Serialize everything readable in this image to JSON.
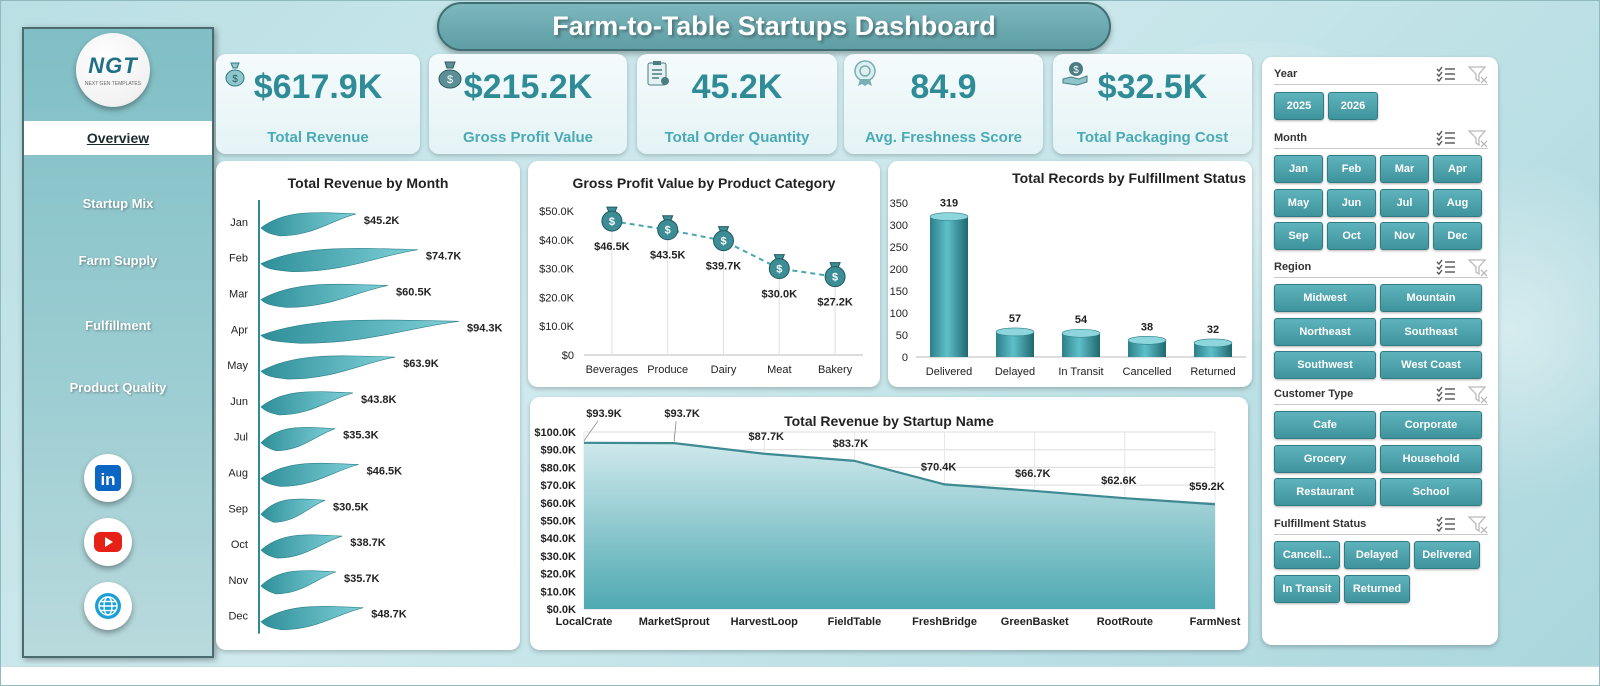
{
  "header": {
    "title": "Farm-to-Table Startups Dashboard"
  },
  "logo": {
    "text": "NGT",
    "subtext": "NEXT GEN TEMPLATES"
  },
  "nav": {
    "items": [
      {
        "label": "Overview",
        "active": true
      },
      {
        "label": "Startup Mix",
        "active": false
      },
      {
        "label": "Farm Supply",
        "active": false
      },
      {
        "label": "Fulfillment",
        "active": false
      },
      {
        "label": "Product Quality",
        "active": false
      }
    ]
  },
  "social": [
    "linkedin-icon",
    "youtube-icon",
    "globe-icon"
  ],
  "kpis": [
    {
      "value": "$617.9K",
      "label": "Total Revenue",
      "icon": "money-bag-icon"
    },
    {
      "value": "$215.2K",
      "label": "Gross Profit Value",
      "icon": "money-bag-icon"
    },
    {
      "value": "45.2K",
      "label": "Total Order Quantity",
      "icon": "clipboard-icon"
    },
    {
      "value": "84.9",
      "label": "Avg. Freshness Score",
      "icon": "badge-icon"
    },
    {
      "value": "$32.5K",
      "label": "Total Packaging Cost",
      "icon": "hand-money-icon"
    }
  ],
  "colors": {
    "accent": "#3f939c",
    "kpi_value": "#2f8c97",
    "kpi_label": "#4aaab4",
    "line": "#3d8a93"
  },
  "chart_data": [
    {
      "type": "bar",
      "title": "Total Revenue  by Month",
      "orientation": "horizontal",
      "categories": [
        "Jan",
        "Feb",
        "Mar",
        "Apr",
        "May",
        "Jun",
        "Jul",
        "Aug",
        "Sep",
        "Oct",
        "Nov",
        "Dec"
      ],
      "values": [
        45.2,
        74.7,
        60.5,
        94.3,
        63.9,
        43.8,
        35.3,
        46.5,
        30.5,
        38.7,
        35.7,
        48.7
      ],
      "data_labels": [
        "$45.2K",
        "$74.7K",
        "$60.5K",
        "$94.3K",
        "$63.9K",
        "$43.8K",
        "$35.3K",
        "$46.5K",
        "$30.5K",
        "$38.7K",
        "$35.7K",
        "$48.7K"
      ],
      "xlim": [
        0,
        100
      ]
    },
    {
      "type": "line",
      "title": "Gross Profit Value by Product Category",
      "categories": [
        "Beverages",
        "Produce",
        "Dairy",
        "Meat",
        "Bakery"
      ],
      "values": [
        46.5,
        43.5,
        39.7,
        30.0,
        27.2
      ],
      "data_labels": [
        "$46.5K",
        "$43.5K",
        "$39.7K",
        "$30.0K",
        "$27.2K"
      ],
      "yticks": [
        "$0",
        "$10.0K",
        "$20.0K",
        "$30.0K",
        "$40.0K",
        "$50.0K"
      ],
      "ylim": [
        0,
        50
      ],
      "line_style": "dashed",
      "marker": "money-bag"
    },
    {
      "type": "bar",
      "title": "Total Records by Fulfillment Status",
      "categories": [
        "Delivered",
        "Delayed",
        "In Transit",
        "Cancelled",
        "Returned"
      ],
      "values": [
        319,
        57,
        54,
        38,
        32
      ],
      "data_labels": [
        "319",
        "57",
        "54",
        "38",
        "32"
      ],
      "yticks": [
        "0",
        "50",
        "100",
        "150",
        "200",
        "250",
        "300",
        "350"
      ],
      "ylim": [
        0,
        350
      ]
    },
    {
      "type": "area",
      "title": "Total Revenue  by Startup Name",
      "categories": [
        "LocalCrate",
        "MarketSprout",
        "HarvestLoop",
        "FieldTable",
        "FreshBridge",
        "GreenBasket",
        "RootRoute",
        "FarmNest"
      ],
      "values": [
        93.9,
        93.7,
        87.7,
        83.7,
        70.4,
        66.7,
        62.6,
        59.2
      ],
      "data_labels": [
        "$93.9K",
        "$93.7K",
        "$87.7K",
        "$83.7K",
        "$70.4K",
        "$66.7K",
        "$62.6K",
        "$59.2K"
      ],
      "yticks": [
        "$0.0K",
        "$10.0K",
        "$20.0K",
        "$30.0K",
        "$40.0K",
        "$50.0K",
        "$60.0K",
        "$70.0K",
        "$80.0K",
        "$90.0K",
        "$100.0K"
      ],
      "ylim": [
        0,
        100
      ],
      "grid": true
    }
  ],
  "slicers": [
    {
      "title": "Year",
      "items": [
        "2025",
        "2026"
      ]
    },
    {
      "title": "Month",
      "items": [
        "Jan",
        "Feb",
        "Mar",
        "Apr",
        "May",
        "Jun",
        "Jul",
        "Aug",
        "Sep",
        "Oct",
        "Nov",
        "Dec"
      ]
    },
    {
      "title": "Region",
      "items": [
        "Midwest",
        "Mountain",
        "Northeast",
        "Southeast",
        "Southwest",
        "West Coast"
      ]
    },
    {
      "title": "Customer Type",
      "items": [
        "Cafe",
        "Corporate",
        "Grocery",
        "Household",
        "Restaurant",
        "School"
      ]
    },
    {
      "title": "Fulfillment Status",
      "items": [
        "Cancell...",
        "Delayed",
        "Delivered",
        "In Transit",
        "Returned"
      ]
    }
  ]
}
